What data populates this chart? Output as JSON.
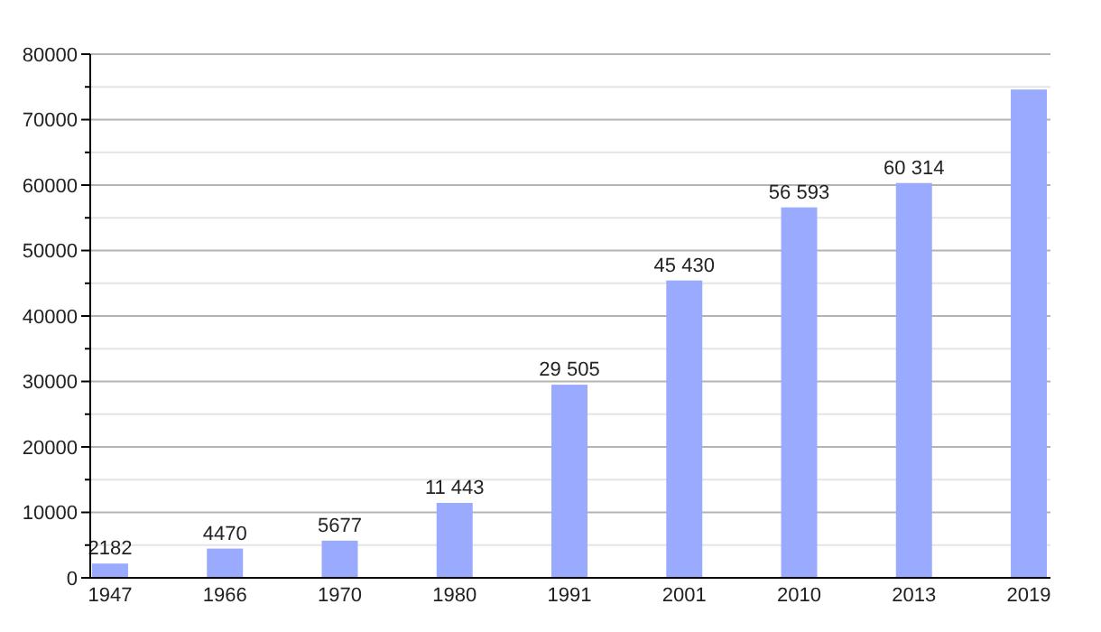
{
  "chart_data": {
    "type": "bar",
    "categories": [
      "1947",
      "1966",
      "1970",
      "1980",
      "1991",
      "2001",
      "2010",
      "2013",
      "2019"
    ],
    "values": [
      2182,
      4470,
      5677,
      11443,
      29505,
      45430,
      56593,
      60314,
      74600
    ],
    "value_labels": [
      "2182",
      "4470",
      "5677",
      "11 443",
      "29 505",
      "45 430",
      "56 593",
      "60 314",
      null
    ],
    "color": "#99aaff",
    "ylim": [
      0,
      80000
    ],
    "yticks": [
      0,
      {
        "value": 5000,
        "label": null
      },
      10000,
      {
        "value": 15000,
        "label": null
      },
      20000,
      {
        "value": 25000,
        "label": null
      },
      30000,
      {
        "value": 35000,
        "label": null
      },
      40000,
      {
        "value": 45000,
        "label": null
      },
      50000,
      {
        "value": 55000,
        "label": null
      },
      60000,
      {
        "value": 65000,
        "label": null
      },
      70000,
      {
        "value": 75000,
        "label": null
      },
      80000
    ],
    "grid": true
  }
}
